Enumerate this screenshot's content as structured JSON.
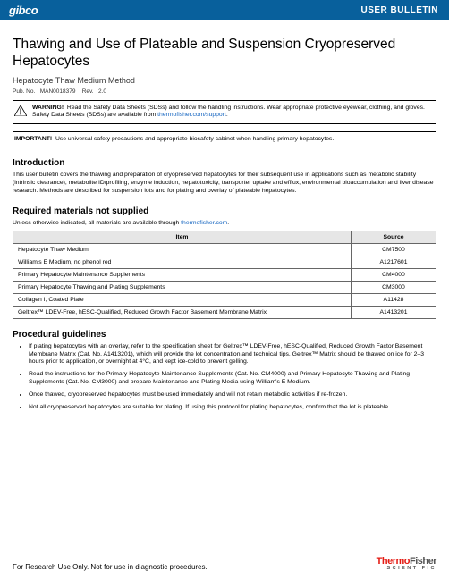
{
  "header": {
    "brand": "gibco",
    "bulletin": "USER BULLETIN"
  },
  "title": "Thawing and Use of Plateable and Suspension Cryopreserved Hepatocytes",
  "subtitle": "Hepatocyte Thaw Medium Method",
  "pub": {
    "label": "Pub. No.",
    "no": "MAN0018379",
    "revlabel": "Rev.",
    "rev": "2.0"
  },
  "warning": {
    "label": "WARNING!",
    "text": "Read the Safety Data Sheets (SDSs) and follow the handling instructions. Wear appropriate protective eyewear, clothing, and gloves. Safety Data Sheets (SDSs) are available from ",
    "link": "thermofisher.com/support",
    "tail": "."
  },
  "important": {
    "label": "IMPORTANT!",
    "text": "Use universal safety precautions and appropriate biosafety cabinet when handling primary hepatocytes."
  },
  "intro": {
    "heading": "Introduction",
    "text": "This user bulletin covers the thawing and preparation of cryopreserved hepatocytes for their subsequent use in applications such as metabolic stability (intrinsic clearance), metabolite ID/profiling, enzyme induction, hepatotoxicity, transporter uptake and efflux, environmental bioaccumulation and liver disease research. Methods are described for suspension lots and for plating and overlay of plateable hepatocytes."
  },
  "materials": {
    "heading": "Required materials not supplied",
    "note_pre": "Unless otherwise indicated, all materials are available through ",
    "note_link": "thermofisher.com",
    "note_tail": ".",
    "columns": [
      "Item",
      "Source"
    ],
    "rows": [
      [
        "Hepatocyte Thaw Medium",
        "CM7500"
      ],
      [
        "William's E Medium, no phenol red",
        "A1217601"
      ],
      [
        "Primary Hepatocyte Maintenance Supplements",
        "CM4000"
      ],
      [
        "Primary Hepatocyte Thawing and Plating Supplements",
        "CM3000"
      ],
      [
        "Collagen I, Coated Plate",
        "A11428"
      ],
      [
        "Geltrex™ LDEV-Free, hESC-Qualified, Reduced Growth Factor Basement Membrane Matrix",
        "A1413201"
      ]
    ]
  },
  "guidelines": {
    "heading": "Procedural guidelines",
    "items": [
      "If plating hepatocytes with an overlay, refer to the specification sheet for Geltrex™ LDEV-Free, hESC-Qualified, Reduced Growth Factor Basement Membrane Matrix (Cat. No. A1413201), which will provide the lot concentration and technical tips. Geltrex™ Matrix should be thawed on ice for 2–3 hours prior to application, or overnight at 4°C, and kept ice-cold to prevent gelling.",
      "Read the instructions for the Primary Hepatocyte Maintenance Supplements (Cat. No. CM4000) and Primary Hepatocyte Thawing and Plating Supplements (Cat. No. CM3000) and prepare Maintenance and Plating Media using William's E Medium.",
      "Once thawed, cryopreserved hepatocytes must be used immediately and will not retain metabolic activities if re-frozen.",
      "Not all cryopreserved hepatocytes are suitable for plating. If using this protocol for plating hepatocytes, confirm that the lot is plateable."
    ]
  },
  "footer": {
    "text": "For Research Use Only. Not for use in diagnostic procedures.",
    "logo_top_a": "Thermo",
    "logo_top_b": "Fisher",
    "logo_bottom": "SCIENTIFIC"
  }
}
